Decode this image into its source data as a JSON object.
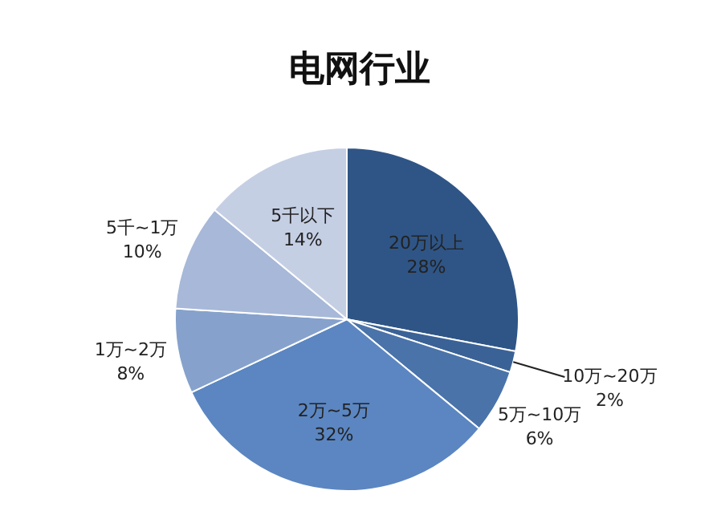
{
  "chart_data": {
    "type": "pie",
    "title": "电网行业",
    "categories": [
      "20万以上",
      "10万~20万",
      "5万~10万",
      "2万~5万",
      "1万~2万",
      "5千~1万",
      "5千以下"
    ],
    "values": [
      28,
      2,
      6,
      32,
      8,
      10,
      14
    ],
    "value_labels": [
      "28%",
      "2%",
      "6%",
      "32%",
      "8%",
      "10%",
      "14%"
    ],
    "colors": [
      "#2f5586",
      "#3b6296",
      "#4a73aa",
      "#5b86c1",
      "#86a2cc",
      "#a7b8d8",
      "#c5cfe4"
    ],
    "legend": false
  }
}
